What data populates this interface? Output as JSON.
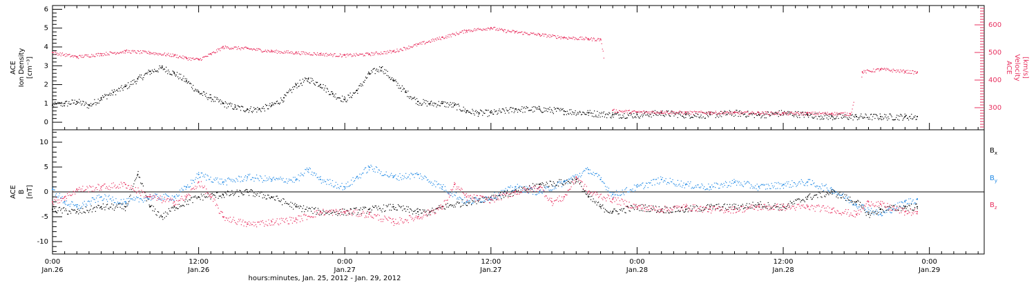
{
  "colors": {
    "black": "#000000",
    "pink": "#e8305f",
    "blue": "#1e88e5"
  },
  "xaxis": {
    "title": "hours:minutes, Jan. 25, 2012 - Jan. 29, 2012",
    "ticks": [
      {
        "hours": 0,
        "time": "0:00",
        "date": "Jan.26"
      },
      {
        "hours": 12,
        "time": "12:00",
        "date": "Jan.26"
      },
      {
        "hours": 24,
        "time": "0:00",
        "date": "Jan.27"
      },
      {
        "hours": 36,
        "time": "12:00",
        "date": "Jan.27"
      },
      {
        "hours": 48,
        "time": "0:00",
        "date": "Jan.28"
      },
      {
        "hours": 60,
        "time": "12:00",
        "date": "Jan.28"
      },
      {
        "hours": 72,
        "time": "0:00",
        "date": "Jan.29"
      }
    ]
  },
  "chart_data": [
    {
      "type": "scatter",
      "panel": "density-velocity",
      "left_axis": {
        "label_lines": [
          "ACE",
          "Ion Density",
          "[cm⁻³]"
        ],
        "ticks": [
          "0",
          "1",
          "2",
          "3",
          "4",
          "5",
          "6"
        ],
        "ylim": [
          -0.4,
          6.2
        ]
      },
      "right_axis": {
        "label_lines": [
          "ACE",
          "Velocity",
          "[km/s]"
        ],
        "ticks": [
          "300",
          "400",
          "500",
          "600"
        ],
        "ylim": [
          220,
          670
        ]
      },
      "xlim_hours": [
        0,
        76.5
      ],
      "series": [
        {
          "axis": "left",
          "color": "black",
          "points": [
            [
              0,
              0.9
            ],
            [
              1,
              1.0
            ],
            [
              2,
              1.1
            ],
            [
              3,
              0.9
            ],
            [
              4,
              1.3
            ],
            [
              5,
              1.6
            ],
            [
              6,
              1.9
            ],
            [
              7,
              2.3
            ],
            [
              8,
              2.7
            ],
            [
              9,
              2.9
            ],
            [
              10,
              2.6
            ],
            [
              11,
              2.2
            ],
            [
              12,
              1.6
            ],
            [
              13,
              1.3
            ],
            [
              14,
              1.0
            ],
            [
              15,
              0.8
            ],
            [
              16,
              0.7
            ],
            [
              17,
              0.7
            ],
            [
              18,
              0.9
            ],
            [
              19,
              1.3
            ],
            [
              20,
              2.0
            ],
            [
              21,
              2.3
            ],
            [
              22,
              2.0
            ],
            [
              23,
              1.5
            ],
            [
              24,
              1.2
            ],
            [
              25,
              1.7
            ],
            [
              26,
              2.6
            ],
            [
              27,
              2.9
            ],
            [
              28,
              2.2
            ],
            [
              29,
              1.6
            ],
            [
              30,
              1.1
            ],
            [
              31,
              1.0
            ],
            [
              32,
              1.0
            ],
            [
              33,
              0.9
            ],
            [
              34,
              0.6
            ],
            [
              35,
              0.5
            ],
            [
              36,
              0.5
            ],
            [
              38,
              0.7
            ],
            [
              40,
              0.7
            ],
            [
              42,
              0.6
            ],
            [
              44,
              0.5
            ],
            [
              46,
              0.4
            ],
            [
              48,
              0.4
            ],
            [
              50,
              0.5
            ],
            [
              52,
              0.4
            ],
            [
              54,
              0.4
            ],
            [
              56,
              0.5
            ],
            [
              58,
              0.4
            ],
            [
              60,
              0.5
            ],
            [
              62,
              0.4
            ],
            [
              64,
              0.3
            ],
            [
              66,
              0.3
            ],
            [
              68,
              0.3
            ],
            [
              70,
              0.3
            ],
            [
              71,
              0.3
            ]
          ]
        },
        {
          "axis": "right",
          "color": "pink",
          "points": [
            [
              0,
              500
            ],
            [
              2,
              485
            ],
            [
              4,
              495
            ],
            [
              6,
              505
            ],
            [
              8,
              500
            ],
            [
              10,
              490
            ],
            [
              11,
              480
            ],
            [
              12,
              475
            ],
            [
              13,
              495
            ],
            [
              14,
              520
            ],
            [
              16,
              515
            ],
            [
              18,
              505
            ],
            [
              20,
              500
            ],
            [
              22,
              495
            ],
            [
              24,
              490
            ],
            [
              26,
              495
            ],
            [
              28,
              505
            ],
            [
              30,
              530
            ],
            [
              32,
              555
            ],
            [
              34,
              580
            ],
            [
              36,
              590
            ],
            [
              37,
              580
            ],
            [
              38,
              575
            ],
            [
              40,
              565
            ],
            [
              42,
              555
            ],
            [
              44,
              550
            ],
            [
              45,
              548
            ],
            [
              46,
              290
            ],
            [
              48,
              285
            ],
            [
              50,
              285
            ],
            [
              52,
              283
            ],
            [
              54,
              283
            ],
            [
              56,
              282
            ],
            [
              58,
              282
            ],
            [
              60,
              280
            ],
            [
              62,
              280
            ],
            [
              64,
              280
            ],
            [
              65.5,
              278
            ],
            [
              66.5,
              430
            ],
            [
              68,
              440
            ],
            [
              70,
              432
            ],
            [
              71,
              428
            ]
          ]
        }
      ]
    },
    {
      "type": "scatter",
      "panel": "magnetic-field",
      "left_axis": {
        "label_lines": [
          "ACE",
          "B",
          "[nT]"
        ],
        "ticks": [
          "-10",
          "-5",
          "0",
          "5",
          "10"
        ],
        "ylim": [
          -12.5,
          12.5
        ]
      },
      "xlim_hours": [
        0,
        76.5
      ],
      "legend": [
        {
          "base": "B",
          "sub": "x",
          "color": "black"
        },
        {
          "base": "B",
          "sub": "y",
          "color": "blue"
        },
        {
          "base": "B",
          "sub": "z",
          "color": "pink"
        }
      ],
      "series": [
        {
          "name": "Bx",
          "color": "black",
          "points": [
            [
              0,
              -3.5
            ],
            [
              2,
              -4.0
            ],
            [
              4,
              -3.0
            ],
            [
              6,
              -3.0
            ],
            [
              7,
              3.5
            ],
            [
              8,
              -3.0
            ],
            [
              9,
              -5.0
            ],
            [
              10,
              -3.0
            ],
            [
              12,
              -1.0
            ],
            [
              14,
              -0.5
            ],
            [
              16,
              0.0
            ],
            [
              18,
              -1.0
            ],
            [
              20,
              -3.0
            ],
            [
              22,
              -4.0
            ],
            [
              24,
              -4.0
            ],
            [
              26,
              -3.5
            ],
            [
              28,
              -3.0
            ],
            [
              30,
              -4.0
            ],
            [
              31,
              -4.0
            ],
            [
              32,
              -3.0
            ],
            [
              34,
              -2.0
            ],
            [
              36,
              -1.0
            ],
            [
              38,
              0.0
            ],
            [
              40,
              1.5
            ],
            [
              42,
              2.0
            ],
            [
              43,
              2.5
            ],
            [
              44,
              -1.0
            ],
            [
              45,
              -3.0
            ],
            [
              46,
              -4.0
            ],
            [
              48,
              -3.0
            ],
            [
              50,
              -3.5
            ],
            [
              52,
              -3.5
            ],
            [
              54,
              -3.0
            ],
            [
              56,
              -3.0
            ],
            [
              58,
              -2.5
            ],
            [
              60,
              -3.0
            ],
            [
              62,
              -1.0
            ],
            [
              64,
              0.0
            ],
            [
              66,
              -2.0
            ],
            [
              67,
              -4.5
            ],
            [
              68,
              -3.5
            ],
            [
              70,
              -3.0
            ],
            [
              71,
              -3.0
            ]
          ]
        },
        {
          "name": "By",
          "color": "blue",
          "points": [
            [
              0,
              0.5
            ],
            [
              1,
              -2.0
            ],
            [
              2,
              -3.0
            ],
            [
              4,
              -1.0
            ],
            [
              6,
              -2.0
            ],
            [
              8,
              -1.0
            ],
            [
              10,
              -1.0
            ],
            [
              11,
              1.0
            ],
            [
              12,
              3.5
            ],
            [
              14,
              2.0
            ],
            [
              16,
              3.0
            ],
            [
              18,
              2.5
            ],
            [
              20,
              2.5
            ],
            [
              21,
              4.5
            ],
            [
              22,
              2.5
            ],
            [
              24,
              1.0
            ],
            [
              25,
              3.0
            ],
            [
              26,
              5.0
            ],
            [
              28,
              3.0
            ],
            [
              30,
              3.5
            ],
            [
              32,
              1.0
            ],
            [
              34,
              -2.0
            ],
            [
              36,
              -1.0
            ],
            [
              38,
              1.0
            ],
            [
              40,
              0.0
            ],
            [
              42,
              2.0
            ],
            [
              44,
              4.5
            ],
            [
              45,
              2.5
            ],
            [
              46,
              -0.5
            ],
            [
              48,
              1.0
            ],
            [
              50,
              2.5
            ],
            [
              52,
              1.5
            ],
            [
              54,
              1.0
            ],
            [
              56,
              2.0
            ],
            [
              58,
              1.0
            ],
            [
              60,
              1.5
            ],
            [
              62,
              2.0
            ],
            [
              64,
              0.5
            ],
            [
              66,
              -2.5
            ],
            [
              68,
              -4.5
            ],
            [
              70,
              -2.0
            ],
            [
              71,
              -1.5
            ]
          ]
        },
        {
          "name": "Bz",
          "color": "pink",
          "points": [
            [
              0,
              -2.0
            ],
            [
              1,
              -1.0
            ],
            [
              2,
              0.5
            ],
            [
              4,
              1.0
            ],
            [
              6,
              1.5
            ],
            [
              8,
              -1.0
            ],
            [
              10,
              -2.0
            ],
            [
              11,
              -1.0
            ],
            [
              12,
              2.0
            ],
            [
              13,
              -1.0
            ],
            [
              14,
              -5.0
            ],
            [
              16,
              -6.5
            ],
            [
              18,
              -6.0
            ],
            [
              20,
              -5.5
            ],
            [
              22,
              -4.0
            ],
            [
              24,
              -4.0
            ],
            [
              26,
              -4.5
            ],
            [
              28,
              -6.0
            ],
            [
              30,
              -5.0
            ],
            [
              32,
              -3.0
            ],
            [
              33,
              1.5
            ],
            [
              34,
              -1.0
            ],
            [
              36,
              -1.5
            ],
            [
              38,
              0.0
            ],
            [
              40,
              1.0
            ],
            [
              41,
              -2.0
            ],
            [
              42,
              -1.0
            ],
            [
              43,
              3.0
            ],
            [
              44,
              0.0
            ],
            [
              46,
              -1.5
            ],
            [
              48,
              -3.0
            ],
            [
              50,
              -3.5
            ],
            [
              52,
              -3.0
            ],
            [
              54,
              -3.5
            ],
            [
              56,
              -3.5
            ],
            [
              58,
              -3.0
            ],
            [
              60,
              -3.0
            ],
            [
              62,
              -3.0
            ],
            [
              64,
              -3.5
            ],
            [
              66,
              -4.5
            ],
            [
              67,
              -2.0
            ],
            [
              68,
              -2.5
            ],
            [
              70,
              -4.0
            ],
            [
              71,
              -4.0
            ]
          ]
        }
      ]
    }
  ]
}
